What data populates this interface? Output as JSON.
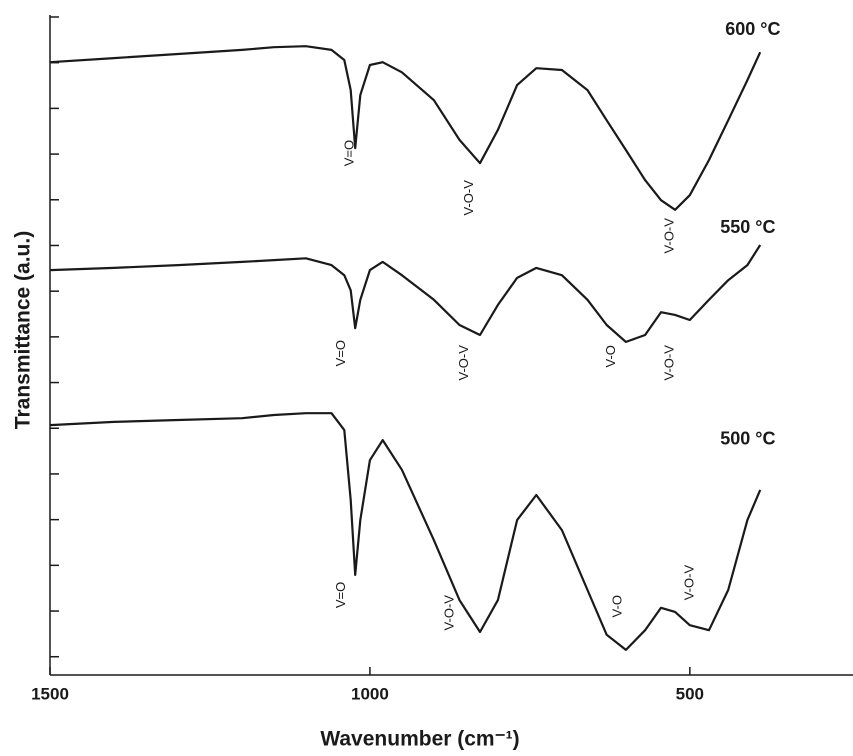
{
  "chart_data": {
    "type": "line",
    "xlabel": "Wavenumber (cm⁻¹)",
    "ylabel": "Transmittance (a.u.)",
    "xlim": [
      1500,
      245
    ],
    "ylim": [
      0,
      14.4
    ],
    "xticks": [
      1500,
      1000,
      500
    ],
    "yticks": [
      0.4,
      1.4,
      2.4,
      3.4,
      4.4,
      5.4,
      6.4,
      7.4,
      8.4,
      9.4,
      10.4,
      11.4,
      12.4,
      13.4,
      14.4
    ],
    "x": [
      1500,
      1400,
      1300,
      1200,
      1150,
      1100,
      1060,
      1040,
      1030,
      1023,
      1015,
      1000,
      980,
      950,
      900,
      860,
      828,
      800,
      770,
      740,
      700,
      660,
      630,
      600,
      570,
      545,
      523,
      500,
      470,
      440,
      410,
      390
    ],
    "series": [
      {
        "name": "600 °C",
        "color": "#1a1a1a",
        "values": [
          13.41,
          13.5,
          13.59,
          13.68,
          13.74,
          13.76,
          13.68,
          13.46,
          12.8,
          11.53,
          12.69,
          13.35,
          13.41,
          13.19,
          12.58,
          11.71,
          11.2,
          11.93,
          12.91,
          13.28,
          13.24,
          12.8,
          12.14,
          11.49,
          10.83,
          10.39,
          10.18,
          10.5,
          11.27,
          12.14,
          13.02,
          13.63
        ]
      },
      {
        "name": "550 °C",
        "color": "#1a1a1a",
        "values": [
          8.86,
          8.91,
          8.97,
          9.04,
          9.08,
          9.12,
          8.97,
          8.75,
          8.42,
          7.59,
          8.21,
          8.86,
          9.04,
          8.75,
          8.21,
          7.66,
          7.44,
          8.1,
          8.69,
          8.91,
          8.75,
          8.21,
          7.66,
          7.29,
          7.44,
          7.94,
          7.88,
          7.77,
          8.21,
          8.64,
          8.97,
          9.41
        ]
      },
      {
        "name": "500 °C",
        "color": "#1a1a1a",
        "values": [
          5.47,
          5.54,
          5.58,
          5.62,
          5.69,
          5.73,
          5.73,
          5.36,
          3.83,
          2.19,
          3.39,
          4.7,
          5.14,
          4.49,
          2.95,
          1.64,
          0.94,
          1.64,
          3.39,
          3.94,
          3.17,
          1.86,
          0.88,
          0.55,
          0.98,
          1.47,
          1.38,
          1.09,
          0.98,
          1.86,
          3.39,
          4.05
        ]
      }
    ],
    "annotations": [
      {
        "text": "V=O",
        "x": 1031,
        "y": 11.71
      },
      {
        "text": "V-O-V",
        "x": 844,
        "y": 10.83
      },
      {
        "text": "V-O-V",
        "x": 531,
        "y": 10.0
      },
      {
        "text": "V=O",
        "x": 1044,
        "y": 7.33
      },
      {
        "text": "V-O-V",
        "x": 852,
        "y": 7.22
      },
      {
        "text": "V-O",
        "x": 622,
        "y": 7.22
      },
      {
        "text": "V-O-V",
        "x": 531,
        "y": 7.22
      },
      {
        "text": "V=O",
        "x": 1044,
        "y": 2.04
      },
      {
        "text": "V-O-V",
        "x": 875,
        "y": 1.75
      },
      {
        "text": "V-O",
        "x": 612,
        "y": 1.75
      },
      {
        "text": "V-O-V",
        "x": 500,
        "y": 2.41
      }
    ]
  }
}
